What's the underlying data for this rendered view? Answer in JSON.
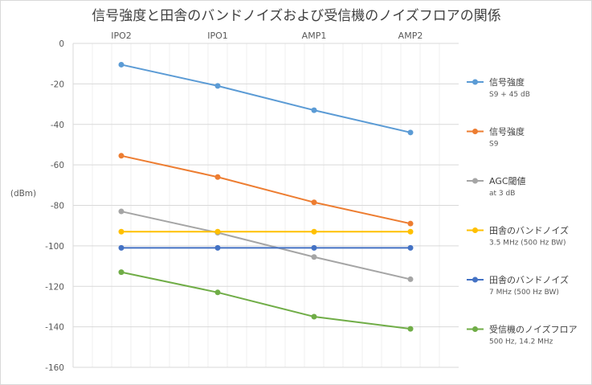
{
  "chart_data": {
    "type": "line",
    "title": "信号強度と田舎のバンドノイズおよび受信機のノイズフロアの関係",
    "ylabel": "(dBm)",
    "xlabel": "",
    "categories": [
      "IPO2",
      "IPO1",
      "AMP1",
      "AMP2"
    ],
    "ylim": [
      -160,
      0
    ],
    "yticks": [
      0,
      -20,
      -40,
      -60,
      -80,
      -100,
      -120,
      -140,
      -160
    ],
    "grid": true,
    "x_axis_position": "top",
    "legend_position": "right",
    "series": [
      {
        "name": "信号強度",
        "sub": "S9 + 45 dB",
        "color": "#5B9BD5",
        "values": [
          -10.5,
          -21,
          -33,
          -44
        ]
      },
      {
        "name": "信号強度",
        "sub": "S9",
        "color": "#ED7D31",
        "values": [
          -55.5,
          -66,
          -78.5,
          -89
        ]
      },
      {
        "name": "AGC閾値",
        "sub": "at 3 dB",
        "color": "#A5A5A5",
        "values": [
          -83,
          -93.5,
          -105.5,
          -116.5
        ]
      },
      {
        "name": "田舎のバンドノイズ",
        "sub": "3.5 MHz (500 Hz BW)",
        "color": "#FFC000",
        "values": [
          -93,
          -93,
          -93,
          -93
        ]
      },
      {
        "name": "田舎のバンドノイズ",
        "sub": "7 MHz (500 Hz BW)",
        "color": "#4472C4",
        "values": [
          -101,
          -101,
          -101,
          -101
        ]
      },
      {
        "name": "受信機のノイズフロア",
        "sub": "500 Hz, 14.2 MHz",
        "color": "#70AD47",
        "values": [
          -113,
          -123,
          -135,
          -141
        ]
      }
    ]
  }
}
